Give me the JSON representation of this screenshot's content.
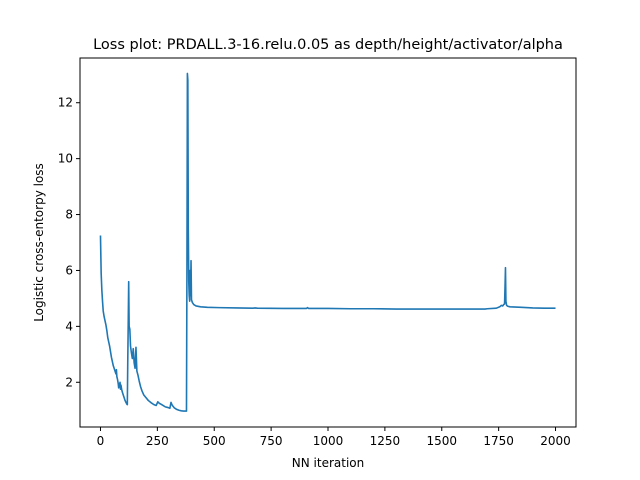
{
  "chart_data": {
    "type": "line",
    "title": "Loss plot: PRDALL.3-16.relu.0.05 as depth/height/activator/alpha",
    "xlabel": "NN iteration",
    "ylabel": "Logistic cross-entorpy loss",
    "xlim": [
      -90,
      2090
    ],
    "ylim": [
      0.4,
      13.6
    ],
    "xticks": [
      0,
      250,
      500,
      750,
      1000,
      1250,
      1500,
      1750,
      2000
    ],
    "yticks": [
      2,
      4,
      6,
      8,
      10,
      12
    ],
    "grid": false,
    "series": [
      {
        "color": "#1f77b4",
        "points": [
          [
            0,
            7.25
          ],
          [
            3,
            5.9
          ],
          [
            6,
            5.3
          ],
          [
            9,
            4.9
          ],
          [
            12,
            4.55
          ],
          [
            16,
            4.35
          ],
          [
            20,
            4.2
          ],
          [
            24,
            4.05
          ],
          [
            28,
            3.85
          ],
          [
            32,
            3.6
          ],
          [
            36,
            3.45
          ],
          [
            40,
            3.3
          ],
          [
            44,
            3.1
          ],
          [
            48,
            2.9
          ],
          [
            52,
            2.75
          ],
          [
            56,
            2.6
          ],
          [
            60,
            2.5
          ],
          [
            64,
            2.4
          ],
          [
            68,
            2.3
          ],
          [
            70,
            2.45
          ],
          [
            72,
            2.2
          ],
          [
            75,
            2.1
          ],
          [
            78,
            1.95
          ],
          [
            80,
            1.8
          ],
          [
            82,
            1.95
          ],
          [
            84,
            1.85
          ],
          [
            86,
            2.0
          ],
          [
            88,
            1.75
          ],
          [
            90,
            1.9
          ],
          [
            93,
            1.75
          ],
          [
            96,
            1.65
          ],
          [
            100,
            1.55
          ],
          [
            104,
            1.45
          ],
          [
            108,
            1.35
          ],
          [
            112,
            1.28
          ],
          [
            116,
            1.22
          ],
          [
            118,
            1.2
          ],
          [
            120,
            2.8
          ],
          [
            122,
            4.1
          ],
          [
            124,
            5.6
          ],
          [
            126,
            4.0
          ],
          [
            129,
            3.9
          ],
          [
            132,
            3.3
          ],
          [
            136,
            3.05
          ],
          [
            140,
            2.85
          ],
          [
            144,
            3.2
          ],
          [
            148,
            2.7
          ],
          [
            152,
            2.5
          ],
          [
            156,
            3.25
          ],
          [
            160,
            2.4
          ],
          [
            165,
            2.25
          ],
          [
            170,
            2.05
          ],
          [
            176,
            1.85
          ],
          [
            182,
            1.7
          ],
          [
            190,
            1.55
          ],
          [
            200,
            1.45
          ],
          [
            210,
            1.35
          ],
          [
            222,
            1.27
          ],
          [
            235,
            1.2
          ],
          [
            245,
            1.17
          ],
          [
            252,
            1.3
          ],
          [
            258,
            1.25
          ],
          [
            265,
            1.22
          ],
          [
            275,
            1.17
          ],
          [
            285,
            1.12
          ],
          [
            295,
            1.1
          ],
          [
            305,
            1.07
          ],
          [
            310,
            1.28
          ],
          [
            314,
            1.2
          ],
          [
            318,
            1.15
          ],
          [
            325,
            1.08
          ],
          [
            335,
            1.03
          ],
          [
            345,
            1.0
          ],
          [
            355,
            0.98
          ],
          [
            365,
            0.97
          ],
          [
            378,
            0.97
          ],
          [
            380,
            6.0
          ],
          [
            382,
            13.05
          ],
          [
            384,
            12.8
          ],
          [
            386,
            7.5
          ],
          [
            388,
            5.6
          ],
          [
            390,
            5.1
          ],
          [
            392,
            4.9
          ],
          [
            394,
            6.0
          ],
          [
            396,
            5.1
          ],
          [
            398,
            6.35
          ],
          [
            400,
            4.95
          ],
          [
            404,
            4.85
          ],
          [
            410,
            4.78
          ],
          [
            420,
            4.73
          ],
          [
            440,
            4.7
          ],
          [
            470,
            4.68
          ],
          [
            520,
            4.67
          ],
          [
            600,
            4.66
          ],
          [
            670,
            4.65
          ],
          [
            680,
            4.66
          ],
          [
            690,
            4.65
          ],
          [
            800,
            4.64
          ],
          [
            905,
            4.64
          ],
          [
            910,
            4.67
          ],
          [
            915,
            4.64
          ],
          [
            1000,
            4.64
          ],
          [
            1100,
            4.63
          ],
          [
            1200,
            4.63
          ],
          [
            1300,
            4.62
          ],
          [
            1400,
            4.62
          ],
          [
            1500,
            4.62
          ],
          [
            1600,
            4.62
          ],
          [
            1680,
            4.62
          ],
          [
            1690,
            4.62
          ],
          [
            1700,
            4.63
          ],
          [
            1740,
            4.65
          ],
          [
            1755,
            4.7
          ],
          [
            1762,
            4.75
          ],
          [
            1768,
            4.73
          ],
          [
            1772,
            4.78
          ],
          [
            1776,
            4.8
          ],
          [
            1778,
            5.4
          ],
          [
            1780,
            6.1
          ],
          [
            1782,
            4.9
          ],
          [
            1785,
            4.75
          ],
          [
            1790,
            4.72
          ],
          [
            1800,
            4.7
          ],
          [
            1850,
            4.68
          ],
          [
            1900,
            4.66
          ],
          [
            1950,
            4.65
          ],
          [
            2000,
            4.65
          ]
        ]
      }
    ]
  }
}
